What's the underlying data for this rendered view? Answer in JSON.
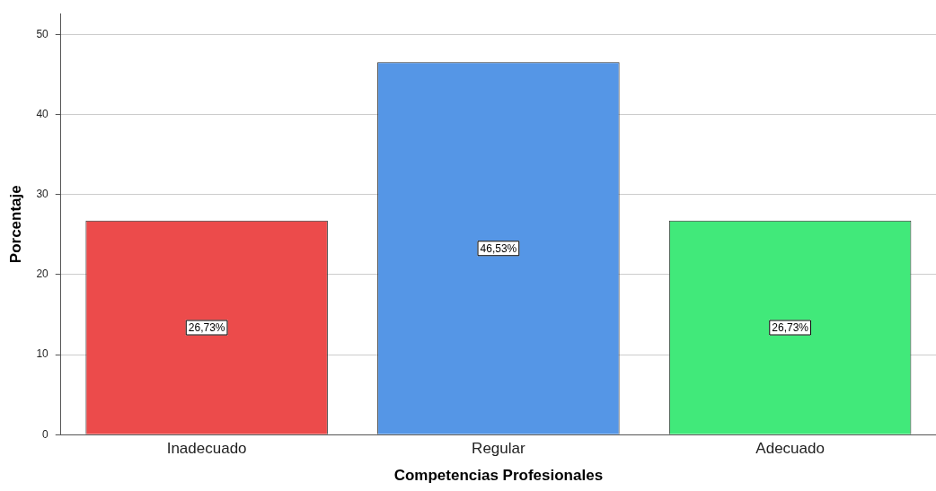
{
  "chart_data": {
    "type": "bar",
    "xlabel": "Competencias Profesionales",
    "ylabel": "Porcentaje",
    "categories": [
      "Inadecuado",
      "Regular",
      "Adecuado"
    ],
    "values": [
      26.73,
      46.53,
      26.73
    ],
    "colors": [
      "#ec4b4b",
      "#5596e6",
      "#41e97a"
    ],
    "value_labels": [
      "26,73%",
      "46,53%",
      "26,73%"
    ],
    "ylim": [
      0,
      52.6
    ],
    "yticks": [
      0,
      10,
      20,
      30,
      40,
      50
    ],
    "grid": "y",
    "legend": false
  }
}
